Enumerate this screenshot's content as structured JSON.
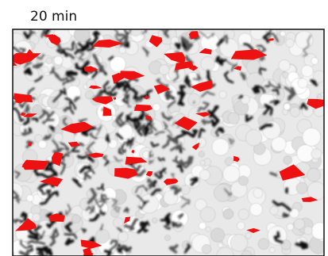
{
  "label": "20 min"
}
